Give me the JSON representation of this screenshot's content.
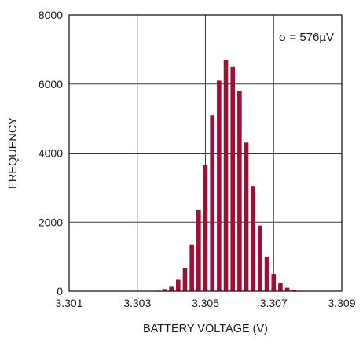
{
  "chart_data": {
    "type": "bar",
    "title": "",
    "xlabel": "BATTERY VOLTAGE (V)",
    "ylabel": "FREQUENCY",
    "xlim": [
      3.301,
      3.309
    ],
    "ylim": [
      0,
      8000
    ],
    "xticks": [
      "3.301",
      "3.303",
      "3.305",
      "3.307",
      "3.309"
    ],
    "yticks": [
      "0",
      "2000",
      "4000",
      "6000",
      "8000"
    ],
    "grid": true,
    "annotation": "σ = 576µV",
    "bar_color": "#9c1035",
    "bars": [
      {
        "x": 3.3036,
        "value": 15
      },
      {
        "x": 3.3038,
        "value": 60
      },
      {
        "x": 3.304,
        "value": 150
      },
      {
        "x": 3.3042,
        "value": 330
      },
      {
        "x": 3.3044,
        "value": 680
      },
      {
        "x": 3.3046,
        "value": 1350
      },
      {
        "x": 3.3048,
        "value": 2350
      },
      {
        "x": 3.305,
        "value": 3650
      },
      {
        "x": 3.3052,
        "value": 5100
      },
      {
        "x": 3.3054,
        "value": 6100
      },
      {
        "x": 3.3056,
        "value": 6700
      },
      {
        "x": 3.3058,
        "value": 6500
      },
      {
        "x": 3.306,
        "value": 5800
      },
      {
        "x": 3.3062,
        "value": 4300
      },
      {
        "x": 3.3064,
        "value": 3050
      },
      {
        "x": 3.3066,
        "value": 1900
      },
      {
        "x": 3.3068,
        "value": 1000
      },
      {
        "x": 3.307,
        "value": 500
      },
      {
        "x": 3.3072,
        "value": 230
      },
      {
        "x": 3.3074,
        "value": 100
      },
      {
        "x": 3.3076,
        "value": 40
      },
      {
        "x": 3.3078,
        "value": 12
      }
    ]
  }
}
